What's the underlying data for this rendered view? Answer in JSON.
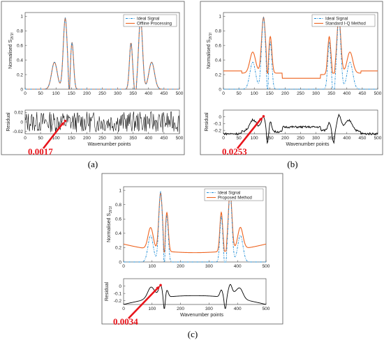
{
  "colors": {
    "ideal": "#1f8dd6",
    "measured": "#ee6420",
    "residual": "#000000",
    "annotation": "#e8141b"
  },
  "labels": {
    "main_ylabel": "Normalised S",
    "main_ylabel_sub": "2f/1f",
    "res_ylabel": "Residual",
    "xlabel": "Wavenumber points"
  },
  "chart_data": [
    {
      "type": "line",
      "panel_label": "(a)",
      "legend": [
        "Ideal Signal",
        "Offline Processing"
      ],
      "xlim": [
        0,
        500
      ],
      "ylim_main": [
        0,
        1.05
      ],
      "ylim_residual": [
        -0.025,
        0.025
      ],
      "residual_annotation": "0.0017",
      "main_yticks": [
        0,
        0.2,
        0.4,
        0.6,
        0.8,
        1
      ],
      "residual_yticks": [
        -0.02,
        0,
        0.02
      ],
      "xticks": [
        0,
        50,
        100,
        150,
        200,
        250,
        300,
        350,
        400,
        450,
        500
      ],
      "series": [
        {
          "name": "Ideal Signal",
          "style": "dash-dot"
        },
        {
          "name": "Offline Processing",
          "style": "solid"
        },
        {
          "name": "Residual",
          "style": "solid"
        }
      ]
    },
    {
      "type": "line",
      "panel_label": "(b)",
      "legend": [
        "Ideal Signal",
        "Standard I-Q Method"
      ],
      "xlim": [
        0,
        500
      ],
      "ylim_main": [
        0,
        1.05
      ],
      "ylim_residual": [
        -0.25,
        0.1
      ],
      "residual_annotation": "0.0253",
      "main_yticks": [
        0,
        0.2,
        0.4,
        0.6,
        0.8,
        1
      ],
      "residual_yticks": [
        -0.2,
        -0.1,
        0
      ],
      "xticks": [
        0,
        50,
        100,
        150,
        200,
        250,
        300,
        350,
        400,
        450,
        500
      ],
      "series": [
        {
          "name": "Ideal Signal",
          "style": "dash-dot"
        },
        {
          "name": "Standard I-Q Method",
          "style": "solid"
        },
        {
          "name": "Residual",
          "style": "solid"
        }
      ]
    },
    {
      "type": "line",
      "panel_label": "(c)",
      "legend": [
        "Ideal Signal",
        "Proposed Method"
      ],
      "xlim": [
        0,
        500
      ],
      "ylim_main": [
        0,
        1.05
      ],
      "ylim_residual": [
        -0.25,
        0.1
      ],
      "residual_annotation": "0.0034",
      "main_yticks": [
        0,
        0.2,
        0.4,
        0.6,
        0.8,
        1
      ],
      "residual_yticks": [
        -0.2,
        -0.1,
        0
      ],
      "xticks": [
        0,
        100,
        200,
        300,
        400,
        500
      ],
      "series": [
        {
          "name": "Ideal Signal",
          "style": "dash-dot"
        },
        {
          "name": "Proposed Method",
          "style": "solid"
        },
        {
          "name": "Residual",
          "style": "solid"
        }
      ]
    }
  ]
}
